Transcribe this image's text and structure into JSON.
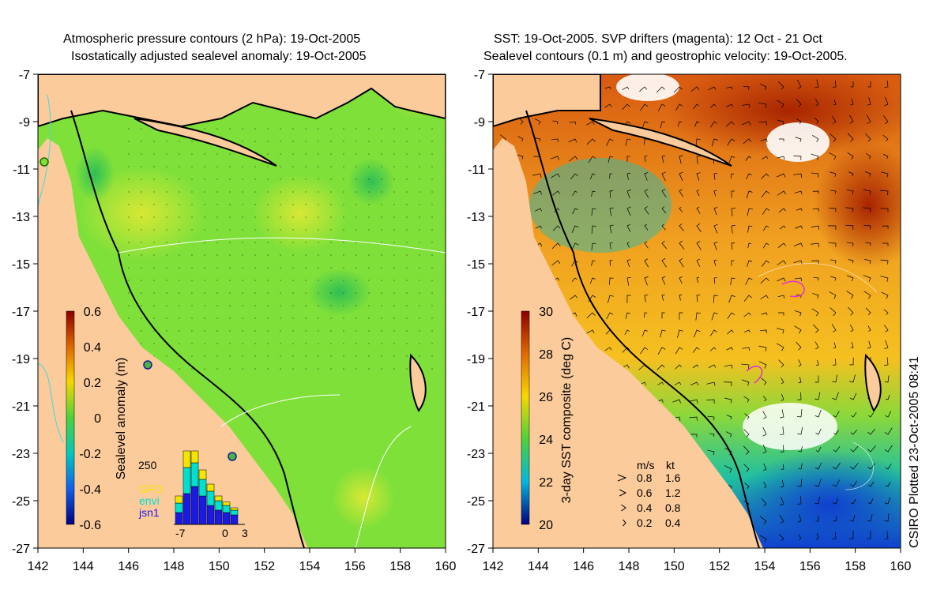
{
  "left_panel": {
    "title_line1": "Atmospheric pressure contours (2 hPa): 19-Oct-2005",
    "title_line2": "Isostatically adjusted sealevel anomaly: 19-Oct-2005",
    "colorbar": {
      "label": "Sealevel anomaly (m)",
      "ticks": [
        "0.6",
        "0.4",
        "0.2",
        "0",
        "-0.2",
        "-0.4",
        "-0.6"
      ]
    },
    "histogram": {
      "max_label": "250",
      "x_ticks": [
        "-7",
        "0",
        "3"
      ],
      "series": [
        "GFO",
        "envi",
        "jsn1"
      ],
      "series_colors": [
        "#f2e600",
        "#00e0d0",
        "#1a1ae6"
      ]
    }
  },
  "right_panel": {
    "title_line1": "SST: 19-Oct-2005. SVP drifters (magenta): 12 Oct - 21 Oct",
    "title_line2": "Sealevel contours (0.1 m) and geostrophic velocity: 19-Oct-2005.",
    "colorbar": {
      "label": "3-day SST composite (deg C)",
      "ticks": [
        "30",
        "28",
        "26",
        "24",
        "22",
        "20"
      ]
    },
    "velocity_legend": {
      "header_ms": "m/s",
      "header_kt": "kt",
      "rows": [
        {
          "ms": "0.8",
          "kt": "1.6"
        },
        {
          "ms": "0.6",
          "kt": "1.2"
        },
        {
          "ms": "0.4",
          "kt": "0.8"
        },
        {
          "ms": "0.2",
          "kt": "0.4"
        }
      ]
    }
  },
  "axes": {
    "lat_ticks": [
      "-7",
      "-9",
      "-11",
      "-13",
      "-15",
      "-17",
      "-19",
      "-21",
      "-23",
      "-25",
      "-27"
    ],
    "lon_ticks": [
      "142",
      "144",
      "146",
      "148",
      "150",
      "152",
      "154",
      "156",
      "158",
      "160"
    ]
  },
  "credit": "CSIRO Plotted 23-Oct-2005 08:41",
  "colors": {
    "land": "#fccb9c",
    "sla_background": "#7fe03a",
    "sst_background": "#f2b82a"
  }
}
